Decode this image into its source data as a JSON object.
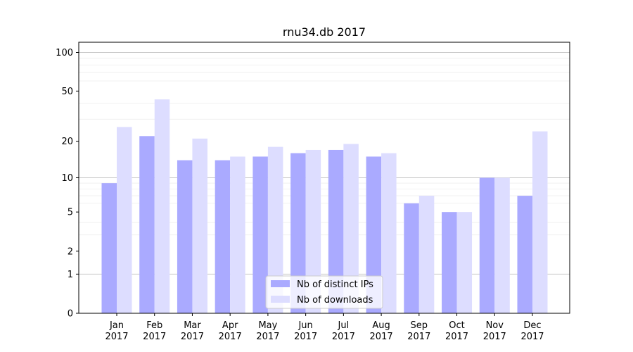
{
  "chart_data": {
    "type": "bar",
    "title": "rnu34.db 2017",
    "xlabel": "",
    "ylabel": "",
    "y_scale": "log(1+y)",
    "ylim": [
      0,
      120
    ],
    "y_ticks": [
      0,
      1,
      2,
      5,
      10,
      20,
      50,
      100
    ],
    "grid": "horizontal",
    "legend_position": "bottom-center",
    "categories": [
      [
        "Jan",
        "2017"
      ],
      [
        "Feb",
        "2017"
      ],
      [
        "Mar",
        "2017"
      ],
      [
        "Apr",
        "2017"
      ],
      [
        "May",
        "2017"
      ],
      [
        "Jun",
        "2017"
      ],
      [
        "Jul",
        "2017"
      ],
      [
        "Aug",
        "2017"
      ],
      [
        "Sep",
        "2017"
      ],
      [
        "Oct",
        "2017"
      ],
      [
        "Nov",
        "2017"
      ],
      [
        "Dec",
        "2017"
      ]
    ],
    "series": [
      {
        "name": "Nb of distinct IPs",
        "color": "#aaaaff",
        "values": [
          9,
          22,
          14,
          14,
          15,
          16,
          17,
          15,
          6,
          5,
          10,
          7
        ]
      },
      {
        "name": "Nb of downloads",
        "color": "#ddddff",
        "values": [
          26,
          43,
          21,
          15,
          18,
          17,
          19,
          16,
          7,
          5,
          10,
          24
        ]
      }
    ]
  }
}
